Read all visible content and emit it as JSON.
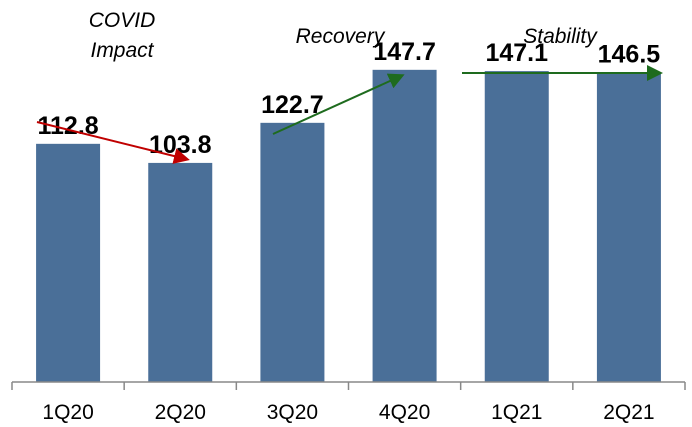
{
  "chart_data": {
    "type": "bar",
    "categories": [
      "1Q20",
      "2Q20",
      "3Q20",
      "4Q20",
      "1Q21",
      "2Q21"
    ],
    "values": [
      112.8,
      103.8,
      122.7,
      147.7,
      147.1,
      146.5
    ],
    "value_labels": [
      "112.8",
      "103.8",
      "122.7",
      "147.7",
      "147.1",
      "146.5"
    ],
    "ylim": [
      0,
      160
    ],
    "grid": false,
    "bar_color": "#4A6F98",
    "annotations": [
      {
        "lines": [
          "COVID",
          "Impact"
        ],
        "arrow_color": "#C00000",
        "direction": "down"
      },
      {
        "lines": [
          "Recovery"
        ],
        "arrow_color": "#1E6B1E",
        "direction": "up"
      },
      {
        "lines": [
          "Stability"
        ],
        "arrow_color": "#1E6B1E",
        "direction": "flat"
      }
    ]
  }
}
